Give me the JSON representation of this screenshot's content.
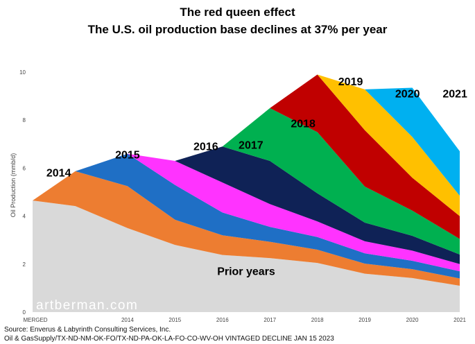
{
  "chart_data": {
    "type": "area",
    "title": "The red queen effect",
    "subtitle": "The U.S. oil production base declines at 37% per year",
    "ylabel": "Oil Production (mmb/d)",
    "xlabel": "",
    "x_ticks": [
      "MERGED",
      "2014",
      "2015",
      "2016",
      "2017",
      "2018",
      "2019",
      "2020",
      "2021"
    ],
    "y_ticks": [
      "0",
      "2",
      "4",
      "6",
      "8",
      "10"
    ],
    "ylim": [
      0,
      10
    ],
    "grid": false,
    "stacked": true,
    "watermark": "artberman.com",
    "source_lines": [
      "Source: Enverus & Labyrinth Consulting Services, Inc.",
      "Oil & GasSupply/TX-ND-NM-OK-FO/TX-ND-PA-OK-LA-FO-CO-WV-OH VINTAGED DECLINE JAN 15 2023"
    ],
    "x_positions": [
      0,
      0.9,
      2,
      3,
      4,
      5,
      6,
      7,
      8,
      9
    ],
    "series": [
      {
        "name": "Prior years",
        "color": "#d9d9d9",
        "values": [
          4.65,
          4.42,
          3.5,
          2.8,
          2.38,
          2.25,
          2.05,
          1.6,
          1.42,
          1.1
        ]
      },
      {
        "name": "2014",
        "color": "#ed7d31",
        "values": [
          0,
          1.45,
          1.75,
          1.05,
          0.82,
          0.68,
          0.55,
          0.42,
          0.37,
          0.3
        ]
      },
      {
        "name": "2015",
        "color": "#1f6fc5",
        "values": [
          null,
          0,
          1.35,
          1.45,
          0.95,
          0.62,
          0.53,
          0.43,
          0.35,
          0.3
        ]
      },
      {
        "name": "2016",
        "color": "#ff33ff",
        "values": [
          null,
          null,
          0,
          1.0,
          1.25,
          0.95,
          0.65,
          0.5,
          0.42,
          0.3
        ]
      },
      {
        "name": "2017",
        "color": "#0f2256",
        "values": [
          null,
          null,
          null,
          0,
          1.5,
          1.8,
          1.17,
          0.78,
          0.62,
          0.4
        ]
      },
      {
        "name": "2018",
        "color": "#00b050",
        "values": [
          null,
          null,
          null,
          null,
          0,
          2.2,
          2.55,
          1.5,
          1.05,
          0.65
        ]
      },
      {
        "name": "2019",
        "color": "#c00000",
        "values": [
          null,
          null,
          null,
          null,
          null,
          0,
          2.4,
          2.35,
          1.37,
          0.95
        ]
      },
      {
        "name": "2020",
        "color": "#ffc000",
        "values": [
          null,
          null,
          null,
          null,
          null,
          null,
          0,
          1.7,
          1.7,
          0.85
        ]
      },
      {
        "name": "2021",
        "color": "#00b0f0",
        "values": [
          null,
          null,
          null,
          null,
          null,
          null,
          null,
          0,
          2.05,
          1.85
        ]
      }
    ]
  }
}
